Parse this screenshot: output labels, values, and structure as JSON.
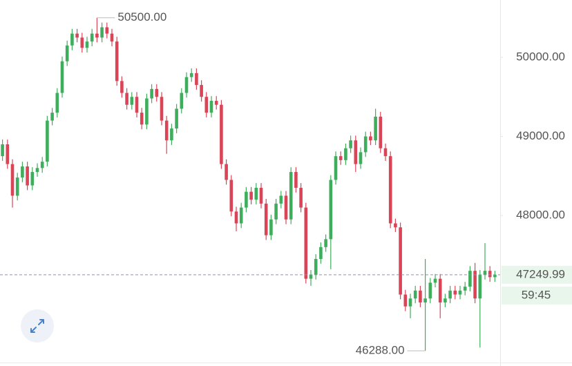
{
  "chart_data": {
    "type": "candlestick",
    "up_color": "#3fae5c",
    "down_color": "#d94457",
    "ylim": [
      46140,
      50725
    ],
    "yticks": [
      {
        "value": 48000,
        "label": "48000.00"
      },
      {
        "value": 49000,
        "label": "49000.00"
      },
      {
        "value": 50000,
        "label": "50000.00"
      }
    ],
    "open": [
      48750,
      48900,
      48650,
      48250,
      48480,
      48620,
      48380,
      48550,
      48600,
      48680,
      49200,
      49300,
      49550,
      49950,
      50150,
      50300,
      50250,
      50120,
      50200,
      50300,
      50250,
      50380,
      50300,
      50200,
      49700,
      49550,
      49400,
      49500,
      49300,
      49150,
      49480,
      49600,
      49500,
      49200,
      48950,
      49100,
      49350,
      49550,
      49750,
      49800,
      49650,
      49500,
      49300,
      49450,
      49400,
      48650,
      48450,
      48050,
      47900,
      48100,
      48300,
      48200,
      48350,
      48150,
      47750,
      47950,
      48150,
      48250,
      47950,
      48550,
      48350,
      48100,
      47200,
      47250,
      47450,
      47600,
      47700,
      48450,
      48750,
      48700,
      48850,
      48950,
      48650,
      48800,
      49000,
      48950,
      49250,
      48850,
      48750,
      47900,
      47850,
      47000,
      46850,
      46950,
      47050,
      46900,
      46950,
      47150,
      47200,
      46900,
      46950,
      47050,
      47000,
      47050,
      47100,
      47300,
      46950,
      47250,
      47300,
      47220
    ],
    "high": [
      48960,
      48960,
      48710,
      48540,
      48680,
      48680,
      48610,
      48660,
      48740,
      49260,
      49360,
      49610,
      50010,
      50210,
      50360,
      50360,
      50310,
      50260,
      50360,
      50500,
      50440,
      50440,
      50360,
      50260,
      49760,
      49610,
      49560,
      49560,
      49360,
      49540,
      49660,
      49660,
      49560,
      49260,
      49160,
      49410,
      49610,
      49810,
      49860,
      49860,
      49710,
      49560,
      49510,
      49510,
      49460,
      48710,
      48510,
      48110,
      48160,
      48360,
      48360,
      48410,
      48410,
      48210,
      48010,
      48210,
      48310,
      48310,
      48610,
      48610,
      48410,
      48160,
      47310,
      47510,
      47660,
      47760,
      48510,
      48810,
      48810,
      48910,
      49010,
      49010,
      48860,
      49060,
      49060,
      49350,
      49310,
      48910,
      48810,
      47960,
      47910,
      47060,
      47010,
      47110,
      47110,
      47450,
      47210,
      47260,
      47260,
      47010,
      47110,
      47110,
      47110,
      47160,
      47360,
      47400,
      47310,
      47650,
      47360,
      47300
    ],
    "low": [
      48690,
      48590,
      48100,
      48190,
      48420,
      48320,
      48320,
      48490,
      48540,
      48620,
      49140,
      49240,
      49490,
      49890,
      50090,
      50190,
      50060,
      50060,
      50140,
      50190,
      50190,
      50240,
      50140,
      49640,
      49490,
      49340,
      49340,
      49240,
      49090,
      49090,
      49420,
      49440,
      49140,
      48780,
      48890,
      49040,
      49290,
      49490,
      49690,
      49590,
      49440,
      49240,
      49240,
      49340,
      48590,
      48390,
      47990,
      47800,
      47840,
      48040,
      48140,
      48140,
      48090,
      47690,
      47690,
      47890,
      48090,
      47890,
      47890,
      48290,
      48040,
      47140,
      47110,
      47190,
      47390,
      47540,
      47320,
      48390,
      48640,
      48640,
      48790,
      48550,
      48590,
      48740,
      48890,
      48890,
      48790,
      48690,
      47840,
      47790,
      46940,
      46790,
      46700,
      46890,
      46840,
      46288,
      46890,
      47090,
      46700,
      46840,
      46890,
      46940,
      46940,
      46990,
      47040,
      46890,
      46330,
      47190,
      47160,
      47160
    ],
    "close": [
      48900,
      48650,
      48250,
      48480,
      48620,
      48380,
      48550,
      48600,
      48680,
      49200,
      49300,
      49550,
      49950,
      50150,
      50300,
      50250,
      50120,
      50200,
      50300,
      50250,
      50380,
      50300,
      50200,
      49700,
      49550,
      49400,
      49500,
      49300,
      49150,
      49480,
      49600,
      49500,
      49200,
      48950,
      49100,
      49350,
      49550,
      49750,
      49800,
      49650,
      49500,
      49300,
      49450,
      49400,
      48650,
      48450,
      48050,
      47900,
      48100,
      48300,
      48200,
      48350,
      48150,
      47750,
      47950,
      48150,
      48250,
      47950,
      48550,
      48350,
      48100,
      47200,
      47250,
      47450,
      47600,
      47700,
      48450,
      48750,
      48700,
      48850,
      48950,
      48650,
      48800,
      49000,
      48950,
      49250,
      48850,
      48750,
      47900,
      47850,
      47000,
      46850,
      46950,
      47050,
      46900,
      46950,
      47150,
      47200,
      46900,
      46950,
      47050,
      47000,
      47050,
      47100,
      47300,
      46950,
      47250,
      47300,
      47220,
      47249.99
    ],
    "high_marker": {
      "value": 50500,
      "label": "50500.00"
    },
    "low_marker": {
      "value": 46288,
      "label": "46288.00"
    },
    "last_price": {
      "value": 47249.99,
      "label": "47249.99"
    },
    "countdown": "59:45"
  }
}
